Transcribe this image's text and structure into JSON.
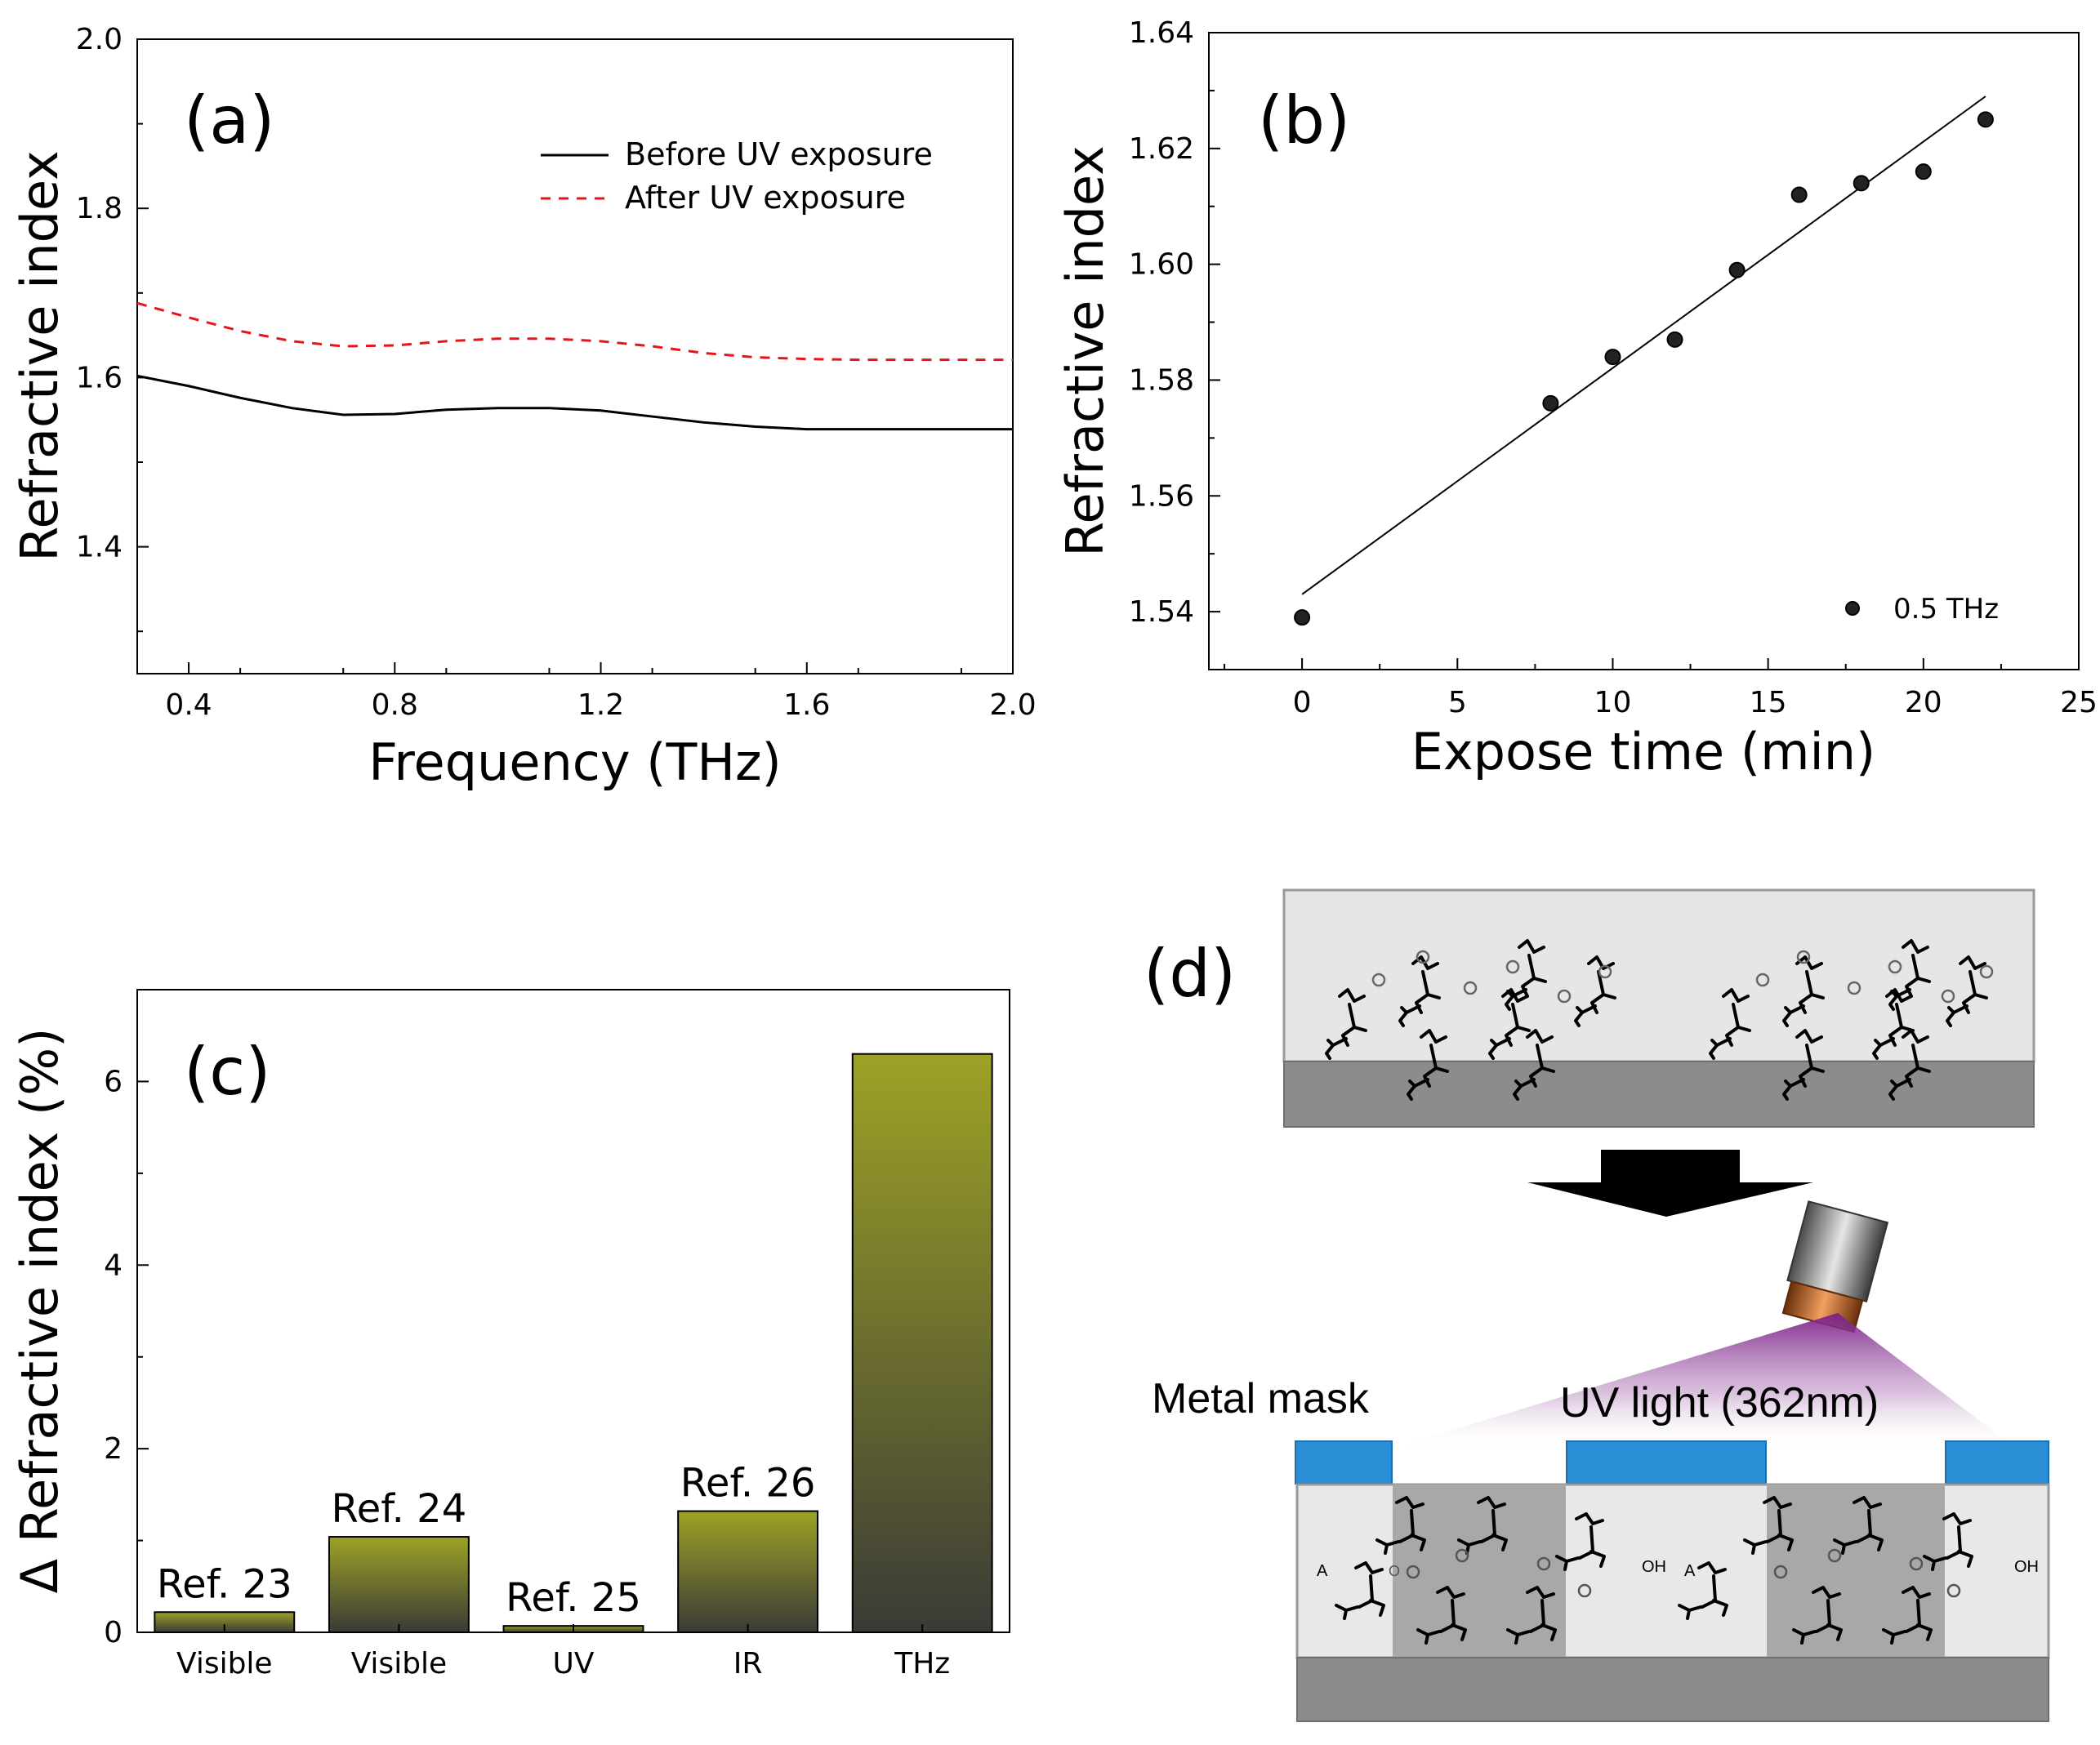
{
  "chart_data": [
    {
      "panel": "(a)",
      "type": "line",
      "xlabel": "Frequency (THz)",
      "ylabel": "Refractive index",
      "xlim": [
        0.3,
        2.0
      ],
      "ylim": [
        1.25,
        2.0
      ],
      "xticks": [
        "0.4",
        "0.8",
        "1.2",
        "1.6",
        "2.0"
      ],
      "yticks": [
        "1.4",
        "1.6",
        "1.8",
        "2.0"
      ],
      "series": [
        {
          "name": "Before UV exposure",
          "color": "#000000",
          "style": "solid",
          "x": [
            0.3,
            0.4,
            0.5,
            0.6,
            0.7,
            0.8,
            0.9,
            1.0,
            1.1,
            1.2,
            1.3,
            1.4,
            1.5,
            1.6,
            1.7,
            1.8,
            1.9,
            2.0
          ],
          "y": [
            1.602,
            1.59,
            1.576,
            1.564,
            1.556,
            1.557,
            1.562,
            1.564,
            1.564,
            1.561,
            1.554,
            1.547,
            1.542,
            1.539,
            1.539,
            1.539,
            1.539,
            1.539
          ]
        },
        {
          "name": "After UV exposure",
          "color": "#e8141b",
          "style": "dashed",
          "x": [
            0.3,
            0.4,
            0.5,
            0.6,
            0.7,
            0.8,
            0.9,
            1.0,
            1.1,
            1.2,
            1.3,
            1.4,
            1.5,
            1.6,
            1.7,
            1.8,
            1.9,
            2.0
          ],
          "y": [
            1.688,
            1.671,
            1.655,
            1.643,
            1.637,
            1.638,
            1.643,
            1.646,
            1.646,
            1.643,
            1.637,
            1.629,
            1.624,
            1.622,
            1.621,
            1.621,
            1.621,
            1.621
          ]
        }
      ]
    },
    {
      "panel": "(b)",
      "type": "scatter",
      "xlabel": "Expose time (min)",
      "ylabel": "Refractive index",
      "xlim": [
        -3,
        25
      ],
      "ylim": [
        1.53,
        1.64
      ],
      "xticks": [
        "0",
        "5",
        "10",
        "15",
        "20",
        "25"
      ],
      "yticks": [
        "1.54",
        "1.56",
        "1.58",
        "1.60",
        "1.62",
        "1.64"
      ],
      "legend": "0.5 THz",
      "series": [
        {
          "name": "0.5 THz",
          "x": [
            0,
            8,
            10,
            12,
            14,
            16,
            18,
            20,
            22
          ],
          "y": [
            1.539,
            1.576,
            1.584,
            1.587,
            1.599,
            1.612,
            1.614,
            1.616,
            1.625
          ]
        }
      ],
      "fit": {
        "x": [
          0,
          22
        ],
        "y": [
          1.543,
          1.629
        ]
      }
    },
    {
      "panel": "(c)",
      "type": "bar",
      "ylabel": "Δ Refractive index (%)",
      "ylim": [
        0,
        7
      ],
      "yticks": [
        "0",
        "2",
        "4",
        "6"
      ],
      "categories": [
        "Visible",
        "Visible",
        "UV",
        "IR",
        "THz"
      ],
      "values": [
        0.22,
        1.04,
        0.07,
        1.32,
        6.3
      ],
      "annotations": [
        "Ref. 23",
        "Ref. 24",
        "Ref. 25",
        "Ref. 26",
        ""
      ],
      "bar_color_top": "#9da226",
      "bar_color_bottom": "#3a3a36"
    }
  ],
  "diagram": {
    "panel": "(d)",
    "metal_mask_label": "Metal mask",
    "uv_light_label": "UV light (362nm)",
    "oh_label": "OH",
    "a_label": "A",
    "o_label": "O"
  },
  "legend_a": [
    "Before UV exposure",
    "After UV exposure"
  ]
}
